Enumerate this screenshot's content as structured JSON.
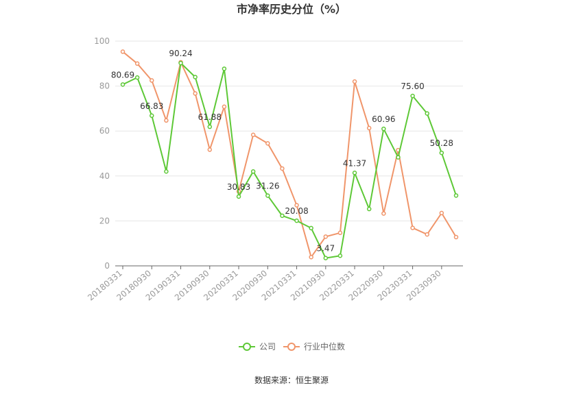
{
  "chart_data": {
    "type": "line",
    "title": "市净率历史分位（%）",
    "ylim": [
      0,
      100
    ],
    "yticks": [
      0,
      20,
      40,
      60,
      80,
      100
    ],
    "x_tick_labels": [
      "20180331",
      "20180930",
      "20190331",
      "20190930",
      "20200331",
      "20200930",
      "20210331",
      "20210930",
      "20220331",
      "20220930",
      "20230331",
      "20230930"
    ],
    "point_count": 24,
    "series": [
      {
        "name": "公司",
        "color": "#5dc836",
        "values": [
          80.69,
          83.8,
          66.83,
          42.0,
          90.24,
          84.0,
          61.88,
          87.7,
          30.83,
          42.0,
          31.26,
          22.3,
          20.08,
          16.8,
          3.47,
          4.5,
          41.37,
          25.3,
          60.96,
          48.3,
          75.6,
          67.8,
          50.28,
          31.3
        ],
        "labels": [
          {
            "index": 0,
            "text": "80.69"
          },
          {
            "index": 2,
            "text": "66.83"
          },
          {
            "index": 4,
            "text": "90.24"
          },
          {
            "index": 6,
            "text": "61.88"
          },
          {
            "index": 8,
            "text": "30.83"
          },
          {
            "index": 10,
            "text": "31.26"
          },
          {
            "index": 12,
            "text": "20.08"
          },
          {
            "index": 14,
            "text": "3.47"
          },
          {
            "index": 16,
            "text": "41.37"
          },
          {
            "index": 18,
            "text": "60.96"
          },
          {
            "index": 20,
            "text": "75.60"
          },
          {
            "index": 22,
            "text": "50.28"
          }
        ]
      },
      {
        "name": "行业中位数",
        "color": "#f0956a",
        "values": [
          95.3,
          90.0,
          82.5,
          64.7,
          90.6,
          76.7,
          51.7,
          70.8,
          33.1,
          58.3,
          54.5,
          43.3,
          27.0,
          3.9,
          13.0,
          14.7,
          82.0,
          61.3,
          23.3,
          51.5,
          16.9,
          14.0,
          23.5,
          12.8
        ]
      }
    ],
    "legend": {
      "position": "bottom",
      "items": [
        "公司",
        "行业中位数"
      ]
    },
    "source": "数据来源：恒生聚源"
  }
}
